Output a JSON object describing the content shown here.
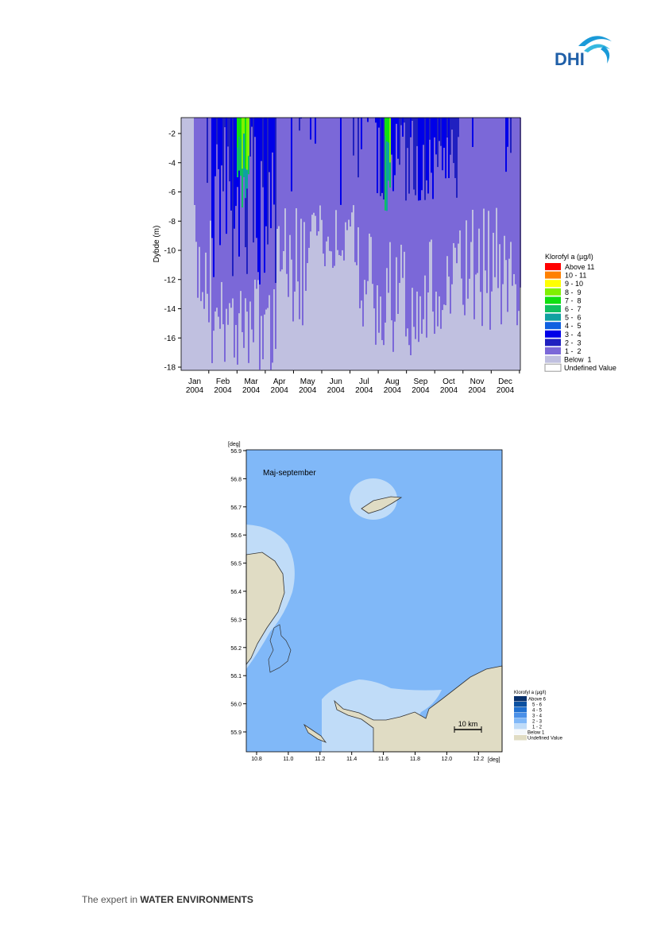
{
  "header": {
    "logo": "DHI"
  },
  "figure1": {
    "y_axis_label": "Dybde (m)",
    "yticks": [
      "-2",
      "-4",
      "-6",
      "-8",
      "-10",
      "-12",
      "-14",
      "-16",
      "-18"
    ],
    "xticks": [
      {
        "month": "Jan",
        "year": "2004"
      },
      {
        "month": "Feb",
        "year": "2004"
      },
      {
        "month": "Mar",
        "year": "2004"
      },
      {
        "month": "Apr",
        "year": "2004"
      },
      {
        "month": "May",
        "year": "2004"
      },
      {
        "month": "Jun",
        "year": "2004"
      },
      {
        "month": "Jul",
        "year": "2004"
      },
      {
        "month": "Aug",
        "year": "2004"
      },
      {
        "month": "Sep",
        "year": "2004"
      },
      {
        "month": "Oct",
        "year": "2004"
      },
      {
        "month": "Nov",
        "year": "2004"
      },
      {
        "month": "Dec",
        "year": "2004"
      }
    ],
    "legend": {
      "title": "Klorofyl a (µg/l)",
      "items": [
        {
          "label": "Above 11",
          "color": "#ff0000"
        },
        {
          "label": "10 - 11",
          "color": "#ff8000"
        },
        {
          "label": "9 - 10",
          "color": "#ffff00"
        },
        {
          "label": "8 -  9",
          "color": "#80f000"
        },
        {
          "label": "7 -  8",
          "color": "#10e010"
        },
        {
          "label": "6 -  7",
          "color": "#10c060"
        },
        {
          "label": "5 -  6",
          "color": "#10a0a0"
        },
        {
          "label": "4 -  5",
          "color": "#1060e0"
        },
        {
          "label": "3 -  4",
          "color": "#0000e8"
        },
        {
          "label": "2 -  3",
          "color": "#2020c0"
        },
        {
          "label": "1 -  2",
          "color": "#7b68d8"
        },
        {
          "label": "Below  1",
          "color": "#c0c0e0"
        },
        {
          "label": "Undefined Value",
          "color": "#ffffff"
        }
      ]
    }
  },
  "figure2": {
    "y_unit": "[deg]",
    "x_unit": "[deg]",
    "yticks": [
      "56.9",
      "56.8",
      "56.7",
      "56.6",
      "56.5",
      "56.4",
      "56.3",
      "56.2",
      "56.1",
      "56.0",
      "55.9"
    ],
    "xticks": [
      "10.8",
      "11.0",
      "11.2",
      "11.4",
      "11.6",
      "11.8",
      "12.0",
      "12.2"
    ],
    "annotation": "Maj-september",
    "scale_bar": "10 km",
    "legend": {
      "title": "Klorofyl a (µg/l)",
      "items": [
        {
          "label": "Above 6",
          "color": "#08306b"
        },
        {
          "label": "5 - 6",
          "color": "#0b50a0"
        },
        {
          "label": "4 - 5",
          "color": "#2070d0"
        },
        {
          "label": "3 - 4",
          "color": "#4a90e8"
        },
        {
          "label": "2 - 3",
          "color": "#80b8f8"
        },
        {
          "label": "1 - 2",
          "color": "#c0dcf8"
        },
        {
          "label": "Below 1",
          "color": "#f4f8fc"
        },
        {
          "label": "Undefined Value",
          "color": "#e0dcc4"
        }
      ]
    }
  },
  "footer": {
    "tagline_prefix": "The expert in",
    "tagline_bold": "WATER ENVIRONMENTS"
  }
}
